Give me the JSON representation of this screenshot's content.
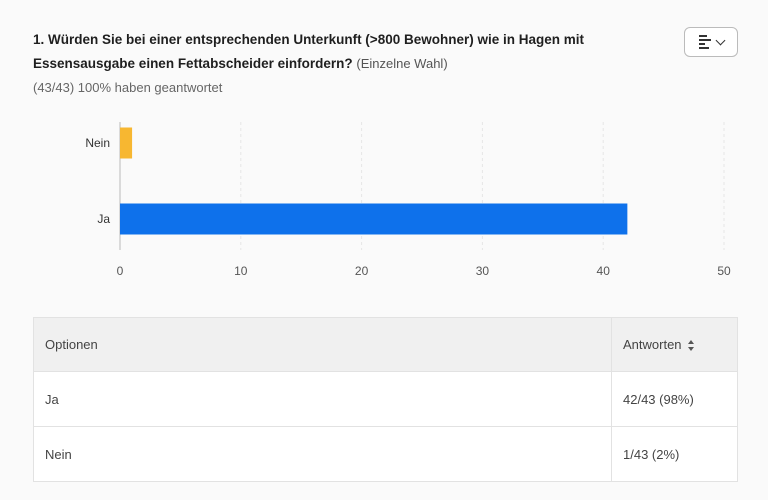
{
  "question": {
    "text": "1. Würden Sie bei einer entsprechenden Unterkunft (>800 Bewohner) wie in Hagen mit Essensausgabe einen Fettabscheider einfordern?",
    "type": "(Einzelne Wahl)",
    "answered": "(43/43) 100% haben geantwortet"
  },
  "chart_toggle": {
    "icon": "bar-chart-icon",
    "chevron": "chevron-down-icon"
  },
  "chart_data": {
    "type": "bar",
    "orientation": "horizontal",
    "categories": [
      "Nein",
      "Ja"
    ],
    "values": [
      1,
      42
    ],
    "colors": [
      "#f7b731",
      "#0e71eb"
    ],
    "xlim": [
      0,
      50
    ],
    "xticks": [
      "0",
      "10",
      "20",
      "30",
      "40",
      "50"
    ],
    "grid": true
  },
  "table": {
    "headers": {
      "option": "Optionen",
      "answers": "Antworten"
    },
    "rows": [
      {
        "option": "Ja",
        "answers": "42/43 (98%)"
      },
      {
        "option": "Nein",
        "answers": "1/43 (2%)"
      }
    ]
  }
}
